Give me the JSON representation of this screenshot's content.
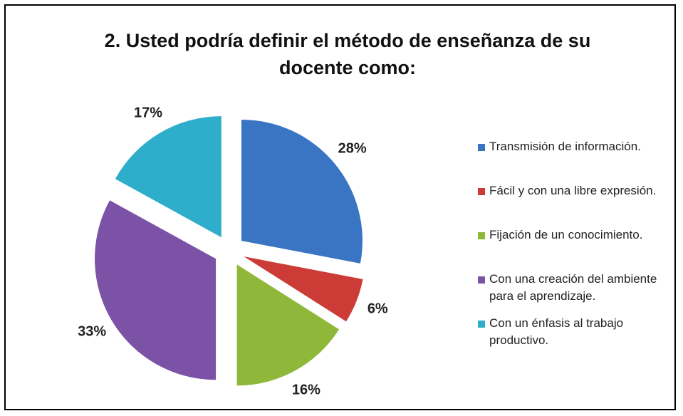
{
  "chart_data": {
    "type": "pie",
    "title": "2.      Usted podría definir el método de enseñanza de su docente como:",
    "categories": [
      "Transmisión de información.",
      "Fácil y con una libre expresión.",
      "Fijación de un conocimiento.",
      "Con una creación del ambiente para el aprendizaje.",
      "Con un énfasis al trabajo productivo."
    ],
    "values": [
      28,
      6,
      16,
      33,
      17
    ],
    "value_labels": [
      "28%",
      "6%",
      "16%",
      "33%",
      "17%"
    ],
    "colors": [
      "#3a75c4",
      "#cc3b35",
      "#8fb83b",
      "#7c52a6",
      "#2eaecb"
    ],
    "legend": "right"
  }
}
